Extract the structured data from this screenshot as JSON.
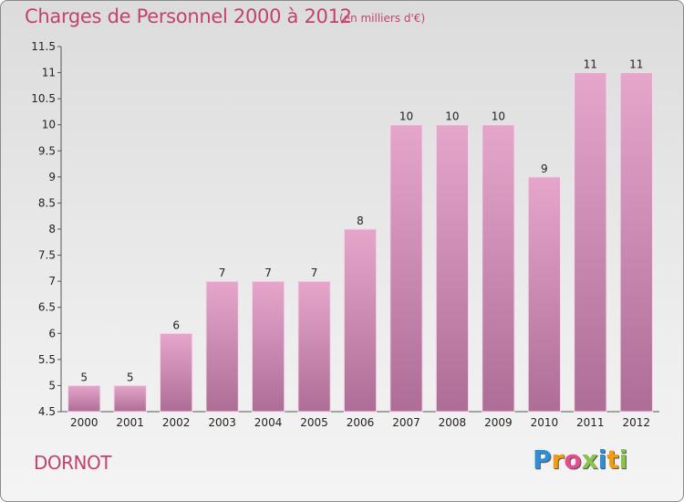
{
  "header": {
    "title": "Charges de Personnel 2000 à 2012",
    "subtitle": "(en milliers d'€)"
  },
  "footer": {
    "commune": "DORNOT",
    "logo_text": "Proxiti"
  },
  "colors": {
    "accent": "#c2426f",
    "bar_top": "#e6a6cc",
    "bar_bottom": "#ad6d96"
  },
  "chart_data": {
    "type": "bar",
    "categories": [
      "2000",
      "2001",
      "2002",
      "2003",
      "2004",
      "2005",
      "2006",
      "2007",
      "2008",
      "2009",
      "2010",
      "2011",
      "2012"
    ],
    "values": [
      5,
      5,
      6,
      7,
      7,
      7,
      8,
      10,
      10,
      10,
      9,
      11,
      11
    ],
    "value_labels": [
      "5",
      "5",
      "6",
      "7",
      "7",
      "7",
      "8",
      "10",
      "10",
      "10",
      "9",
      "11",
      "11"
    ],
    "ylim": [
      4.5,
      11.5
    ],
    "yticks": [
      4.5,
      5,
      5.5,
      6,
      6.5,
      7,
      7.5,
      8,
      8.5,
      9,
      9.5,
      10,
      10.5,
      11,
      11.5
    ],
    "ytick_labels": [
      "4.5",
      "5",
      "5.5",
      "6",
      "6.5",
      "7",
      "7.5",
      "8",
      "8.5",
      "9",
      "9.5",
      "10",
      "10.5",
      "11",
      "11.5"
    ],
    "grid": false,
    "legend": "none"
  }
}
